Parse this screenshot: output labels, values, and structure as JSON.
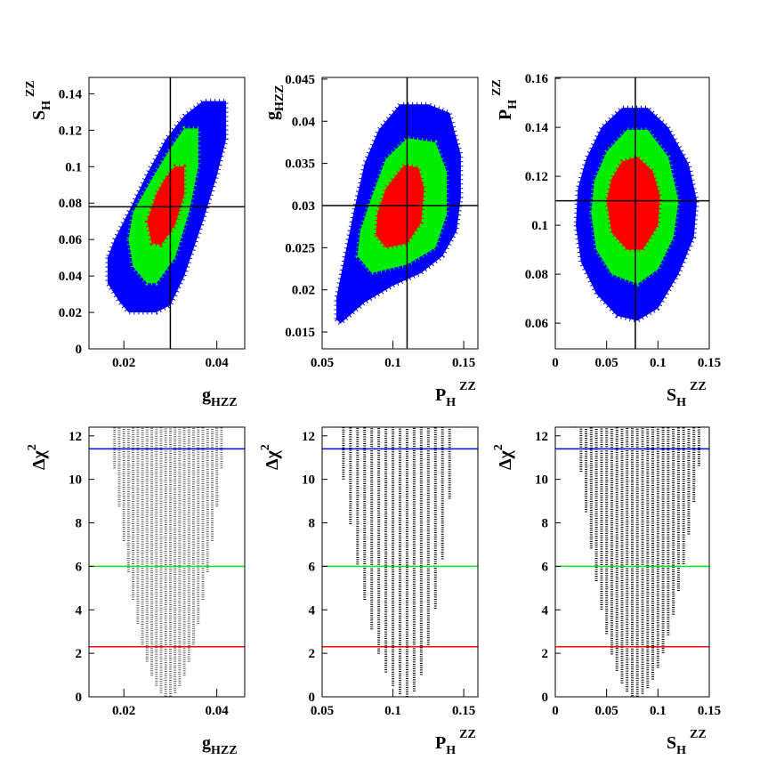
{
  "chart_data": [
    {
      "type": "region",
      "xlabel": {
        "main": "g",
        "sub": "HZZ"
      },
      "ylabel": {
        "main": "S",
        "sub": "H",
        "sup": "ZZ"
      },
      "xlim": [
        0.0125,
        0.046
      ],
      "ylim": [
        0,
        0.149
      ],
      "xticks": [
        0.02,
        0.04
      ],
      "yticks": [
        0,
        0.02,
        0.04,
        0.06,
        0.08,
        0.1,
        0.12,
        0.14
      ],
      "reference": {
        "x": 0.03,
        "y": 0.078
      },
      "series": [
        {
          "color": "#0000ff",
          "x": [
            0.0165,
            0.0165,
            0.019,
            0.021,
            0.027,
            0.03,
            0.033,
            0.037,
            0.04,
            0.042,
            0.042,
            0.037,
            0.033,
            0.029,
            0.025,
            0.021,
            0.018
          ],
          "y": [
            0.05,
            0.036,
            0.026,
            0.02,
            0.02,
            0.024,
            0.04,
            0.07,
            0.095,
            0.115,
            0.136,
            0.136,
            0.128,
            0.115,
            0.096,
            0.075,
            0.06
          ]
        },
        {
          "color": "#00ee00",
          "x": [
            0.021,
            0.022,
            0.025,
            0.027,
            0.031,
            0.034,
            0.036,
            0.036,
            0.033,
            0.03,
            0.026,
            0.022
          ],
          "y": [
            0.06,
            0.045,
            0.036,
            0.036,
            0.05,
            0.075,
            0.1,
            0.121,
            0.121,
            0.11,
            0.093,
            0.075
          ]
        },
        {
          "color": "#ff0000",
          "x": [
            0.025,
            0.026,
            0.028,
            0.031,
            0.033,
            0.033,
            0.031,
            0.029,
            0.027
          ],
          "y": [
            0.07,
            0.058,
            0.057,
            0.068,
            0.085,
            0.1,
            0.1,
            0.094,
            0.085
          ]
        }
      ]
    },
    {
      "type": "region",
      "xlabel": {
        "main": "P",
        "sub": "H",
        "sup": "ZZ"
      },
      "ylabel": {
        "main": "g",
        "sub": "HZZ"
      },
      "xlim": [
        0.05,
        0.16
      ],
      "ylim": [
        0.013,
        0.0452
      ],
      "xticks": [
        0.05,
        0.1,
        0.15
      ],
      "yticks": [
        0.015,
        0.02,
        0.025,
        0.03,
        0.035,
        0.04,
        0.045
      ],
      "reference": {
        "x": 0.11,
        "y": 0.03
      },
      "series": [
        {
          "color": "#0000ff",
          "x": [
            0.06,
            0.063,
            0.08,
            0.1,
            0.12,
            0.135,
            0.145,
            0.148,
            0.148,
            0.14,
            0.125,
            0.105,
            0.09,
            0.08,
            0.072,
            0.066,
            0.06
          ],
          "y": [
            0.0165,
            0.016,
            0.0185,
            0.0205,
            0.022,
            0.024,
            0.027,
            0.031,
            0.036,
            0.041,
            0.042,
            0.042,
            0.039,
            0.035,
            0.029,
            0.024,
            0.019
          ]
        },
        {
          "color": "#00ee00",
          "x": [
            0.075,
            0.085,
            0.11,
            0.13,
            0.138,
            0.138,
            0.13,
            0.11,
            0.095,
            0.085,
            0.077
          ],
          "y": [
            0.024,
            0.022,
            0.023,
            0.025,
            0.029,
            0.034,
            0.0375,
            0.038,
            0.0355,
            0.031,
            0.027
          ]
        },
        {
          "color": "#ff0000",
          "x": [
            0.088,
            0.095,
            0.11,
            0.12,
            0.122,
            0.118,
            0.108,
            0.095,
            0.089
          ],
          "y": [
            0.0265,
            0.025,
            0.0255,
            0.028,
            0.032,
            0.0345,
            0.0348,
            0.032,
            0.029
          ]
        }
      ]
    },
    {
      "type": "region",
      "xlabel": {
        "main": "S",
        "sub": "H",
        "sup": "ZZ"
      },
      "ylabel": {
        "main": "P",
        "sub": "H",
        "sup": "ZZ"
      },
      "xlim": [
        0,
        0.15
      ],
      "ylim": [
        0.0495,
        0.1604
      ],
      "xticks": [
        0,
        0.05,
        0.1,
        0.15
      ],
      "yticks": [
        0.06,
        0.08,
        0.1,
        0.12,
        0.14,
        0.16
      ],
      "reference": {
        "x": 0.078,
        "y": 0.11
      },
      "series": [
        {
          "color": "#0000ff",
          "x": [
            0.02,
            0.025,
            0.04,
            0.06,
            0.08,
            0.1,
            0.12,
            0.135,
            0.138,
            0.13,
            0.11,
            0.09,
            0.065,
            0.045,
            0.03,
            0.022
          ],
          "y": [
            0.1,
            0.085,
            0.072,
            0.063,
            0.061,
            0.066,
            0.08,
            0.095,
            0.11,
            0.125,
            0.14,
            0.148,
            0.148,
            0.14,
            0.127,
            0.115
          ]
        },
        {
          "color": "#00ee00",
          "x": [
            0.035,
            0.04,
            0.055,
            0.08,
            0.1,
            0.115,
            0.12,
            0.11,
            0.09,
            0.07,
            0.05,
            0.038
          ],
          "y": [
            0.105,
            0.09,
            0.08,
            0.076,
            0.082,
            0.095,
            0.11,
            0.128,
            0.139,
            0.139,
            0.13,
            0.118
          ]
        },
        {
          "color": "#ff0000",
          "x": [
            0.05,
            0.055,
            0.07,
            0.085,
            0.1,
            0.102,
            0.095,
            0.08,
            0.065,
            0.055
          ],
          "y": [
            0.11,
            0.097,
            0.09,
            0.09,
            0.1,
            0.112,
            0.122,
            0.128,
            0.126,
            0.119
          ]
        }
      ]
    },
    {
      "type": "scan",
      "xlabel": {
        "main": "g",
        "sub": "HZZ"
      },
      "ylabel": {
        "main": "Δχ",
        "sup": "2"
      },
      "color": "#666666",
      "xlim": [
        0.0125,
        0.046
      ],
      "ylim": [
        0,
        12.4
      ],
      "xticks": [
        0.02,
        0.04
      ],
      "yticks": [
        0,
        2,
        4,
        6,
        8,
        10,
        12
      ],
      "levels": [
        {
          "value": 2.3,
          "color": "#ff0000"
        },
        {
          "value": 6.0,
          "color": "#00ee00"
        },
        {
          "value": 11.4,
          "color": "#0000ff"
        }
      ],
      "x": [
        0.017,
        0.018,
        0.019,
        0.02,
        0.021,
        0.022,
        0.023,
        0.024,
        0.025,
        0.026,
        0.027,
        0.028,
        0.029,
        0.03,
        0.031,
        0.032,
        0.033,
        0.034,
        0.035,
        0.036,
        0.037,
        0.038,
        0.039,
        0.04,
        0.041,
        0.042
      ],
      "y": [
        12.4,
        10.5,
        8.75,
        7.16,
        5.73,
        4.46,
        3.35,
        2.4,
        1.61,
        0.97,
        0.5,
        0.18,
        0.02,
        0.02,
        0.18,
        0.5,
        0.97,
        1.61,
        2.4,
        3.35,
        4.46,
        5.73,
        7.16,
        8.75,
        10.5,
        12.4
      ]
    },
    {
      "type": "scan",
      "xlabel": {
        "main": "P",
        "sub": "H",
        "sup": "ZZ"
      },
      "ylabel": {
        "main": "Δχ",
        "sup": "2"
      },
      "color": "#000000",
      "xlim": [
        0.05,
        0.16
      ],
      "ylim": [
        0,
        12.4
      ],
      "xticks": [
        0.05,
        0.1,
        0.15
      ],
      "yticks": [
        0,
        2,
        4,
        6,
        8,
        10,
        12
      ],
      "levels": [
        {
          "value": 2.3,
          "color": "#ff0000"
        },
        {
          "value": 6.0,
          "color": "#00ee00"
        },
        {
          "value": 11.4,
          "color": "#0000ff"
        }
      ],
      "x": [
        0.06,
        0.065,
        0.07,
        0.075,
        0.08,
        0.085,
        0.09,
        0.095,
        0.1,
        0.105,
        0.11,
        0.115,
        0.12,
        0.125,
        0.13,
        0.135,
        0.14,
        0.145
      ],
      "y": [
        12.4,
        10.0,
        7.94,
        6.08,
        4.46,
        3.1,
        1.98,
        1.12,
        0.5,
        0.12,
        0,
        0.25,
        1.01,
        2.28,
        4.05,
        6.33,
        9.11,
        12.4
      ]
    },
    {
      "type": "scan",
      "xlabel": {
        "main": "S",
        "sub": "H",
        "sup": "ZZ"
      },
      "ylabel": {
        "main": "Δχ",
        "sup": "2"
      },
      "color": "#000000",
      "xlim": [
        0,
        0.15
      ],
      "ylim": [
        0,
        12.4
      ],
      "xticks": [
        0,
        0.05,
        0.1,
        0.15
      ],
      "yticks": [
        0,
        2,
        4,
        6,
        8,
        10,
        12
      ],
      "levels": [
        {
          "value": 2.3,
          "color": "#ff0000"
        },
        {
          "value": 6.0,
          "color": "#00ee00"
        },
        {
          "value": 11.4,
          "color": "#0000ff"
        }
      ],
      "x": [
        0.02,
        0.025,
        0.03,
        0.035,
        0.04,
        0.045,
        0.05,
        0.055,
        0.06,
        0.065,
        0.07,
        0.075,
        0.08,
        0.085,
        0.09,
        0.095,
        0.1,
        0.105,
        0.11,
        0.115,
        0.12,
        0.125,
        0.13,
        0.135,
        0.14,
        0.145
      ],
      "y": [
        12.4,
        10.35,
        8.49,
        6.82,
        5.32,
        4.01,
        2.89,
        1.95,
        1.19,
        0.62,
        0.24,
        0.03,
        0.01,
        0.14,
        0.4,
        0.8,
        1.34,
        2.01,
        2.83,
        3.78,
        4.87,
        6.1,
        7.47,
        8.97,
        10.62,
        12.4
      ]
    }
  ]
}
